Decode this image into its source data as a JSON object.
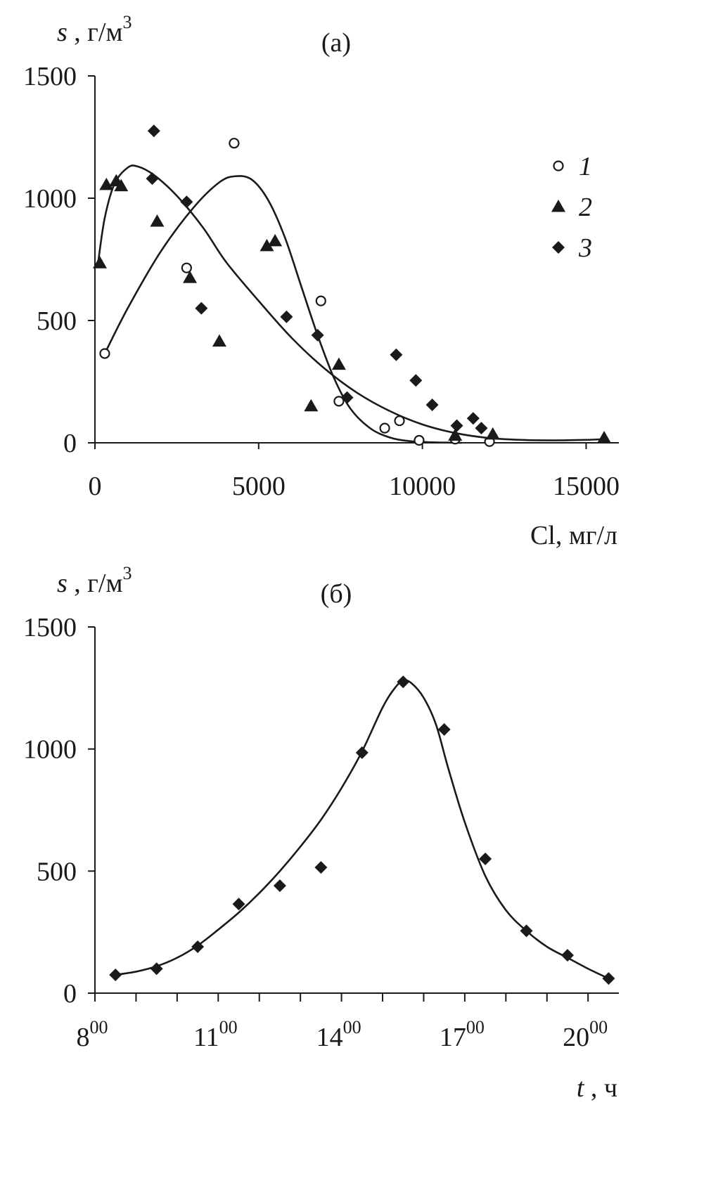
{
  "chart_data": [
    {
      "type": "scatter",
      "title": "(а)",
      "ylabel": {
        "var": "s",
        "unit": "г/м",
        "sup": "3"
      },
      "xlabel": {
        "var": "Cl",
        "unit": "мг/л"
      },
      "xlim": [
        0,
        16000
      ],
      "ylim": [
        0,
        1500
      ],
      "xticks": [
        "0",
        "5000",
        "10000",
        "15000"
      ],
      "xtick_values": [
        0,
        5000,
        10000,
        15000
      ],
      "yticks": [
        "0",
        "500",
        "1000",
        "1500"
      ],
      "ytick_values": [
        0,
        500,
        1000,
        1500
      ],
      "legend_position": "top-right",
      "series": [
        {
          "name": "1",
          "marker": "open-circle",
          "points": [
            [
              300,
              365
            ],
            [
              2800,
              715
            ],
            [
              4250,
              1225
            ],
            [
              6900,
              580
            ],
            [
              7450,
              170
            ],
            [
              8850,
              60
            ],
            [
              9300,
              90
            ],
            [
              9900,
              10
            ],
            [
              11000,
              15
            ],
            [
              12050,
              5
            ]
          ],
          "curve": [
            [
              300,
              365
            ],
            [
              1000,
              550
            ],
            [
              2000,
              780
            ],
            [
              3000,
              960
            ],
            [
              3800,
              1065
            ],
            [
              4300,
              1090
            ],
            [
              4800,
              1075
            ],
            [
              5300,
              990
            ],
            [
              5800,
              840
            ],
            [
              6300,
              640
            ],
            [
              6800,
              440
            ],
            [
              7300,
              265
            ],
            [
              7800,
              140
            ],
            [
              8400,
              60
            ],
            [
              9000,
              22
            ],
            [
              9600,
              7
            ],
            [
              10300,
              2
            ],
            [
              11200,
              0
            ]
          ]
        },
        {
          "name": "2",
          "marker": "filled-triangle",
          "points": [
            [
              150,
              735
            ],
            [
              350,
              1055
            ],
            [
              650,
              1070
            ],
            [
              800,
              1050
            ],
            [
              1900,
              905
            ],
            [
              2900,
              675
            ],
            [
              3800,
              415
            ],
            [
              5250,
              805
            ],
            [
              5500,
              825
            ],
            [
              6600,
              150
            ],
            [
              7450,
              320
            ],
            [
              11000,
              30
            ],
            [
              12150,
              35
            ],
            [
              15550,
              20
            ]
          ],
          "curve": [
            [
              100,
              740
            ],
            [
              300,
              920
            ],
            [
              600,
              1060
            ],
            [
              1000,
              1125
            ],
            [
              1300,
              1130
            ],
            [
              1800,
              1095
            ],
            [
              2500,
              1010
            ],
            [
              3300,
              880
            ],
            [
              4000,
              740
            ],
            [
              5000,
              580
            ],
            [
              6000,
              430
            ],
            [
              7000,
              305
            ],
            [
              8000,
              205
            ],
            [
              9000,
              130
            ],
            [
              10000,
              75
            ],
            [
              11000,
              40
            ],
            [
              12000,
              20
            ],
            [
              13000,
              12
            ],
            [
              14000,
              10
            ],
            [
              15000,
              12
            ],
            [
              15550,
              15
            ]
          ]
        },
        {
          "name": "3",
          "marker": "filled-diamond",
          "points": [
            [
              1800,
              1275
            ],
            [
              1750,
              1080
            ],
            [
              2800,
              985
            ],
            [
              3250,
              550
            ],
            [
              5850,
              515
            ],
            [
              6800,
              440
            ],
            [
              7700,
              185
            ],
            [
              9200,
              360
            ],
            [
              9800,
              255
            ],
            [
              10300,
              155
            ],
            [
              11050,
              70
            ],
            [
              11550,
              100
            ],
            [
              11800,
              60
            ]
          ]
        }
      ]
    },
    {
      "type": "line",
      "title": "(б)",
      "ylabel": {
        "var": "s",
        "unit": "г/м",
        "sup": "3"
      },
      "xlabel": {
        "var": "t",
        "unit": "ч"
      },
      "xlim": [
        8.0,
        20.75
      ],
      "ylim": [
        0,
        1500
      ],
      "minor_xticks": [
        8,
        9,
        10,
        11,
        12,
        13,
        14,
        15,
        16,
        17,
        18,
        19,
        20
      ],
      "xticks": [
        {
          "value": 8,
          "hour": "8",
          "sup": "00"
        },
        {
          "value": 11,
          "hour": "11",
          "sup": "00"
        },
        {
          "value": 14,
          "hour": "14",
          "sup": "00"
        },
        {
          "value": 17,
          "hour": "17",
          "sup": "00"
        },
        {
          "value": 20,
          "hour": "20",
          "sup": "00"
        }
      ],
      "yticks": [
        "0",
        "500",
        "1000",
        "1500"
      ],
      "ytick_values": [
        0,
        500,
        1000,
        1500
      ],
      "series": [
        {
          "name": "",
          "marker": "filled-diamond",
          "points": [
            [
              8.5,
              75
            ],
            [
              9.5,
              100
            ],
            [
              10.5,
              190
            ],
            [
              11.5,
              365
            ],
            [
              12.5,
              440
            ],
            [
              13.5,
              515
            ],
            [
              14.5,
              985
            ],
            [
              15.5,
              1275
            ],
            [
              16.5,
              1080
            ],
            [
              17.5,
              550
            ],
            [
              18.5,
              255
            ],
            [
              19.5,
              155
            ],
            [
              20.5,
              60
            ]
          ],
          "curve": [
            [
              8.5,
              75
            ],
            [
              9.0,
              88
            ],
            [
              9.5,
              110
            ],
            [
              10.0,
              145
            ],
            [
              10.5,
              195
            ],
            [
              11.0,
              260
            ],
            [
              11.5,
              330
            ],
            [
              12.0,
              410
            ],
            [
              12.5,
              500
            ],
            [
              13.0,
              600
            ],
            [
              13.5,
              710
            ],
            [
              14.0,
              840
            ],
            [
              14.5,
              990
            ],
            [
              15.0,
              1170
            ],
            [
              15.3,
              1250
            ],
            [
              15.5,
              1280
            ],
            [
              15.7,
              1270
            ],
            [
              16.0,
              1210
            ],
            [
              16.3,
              1100
            ],
            [
              16.6,
              920
            ],
            [
              17.0,
              700
            ],
            [
              17.5,
              480
            ],
            [
              18.0,
              340
            ],
            [
              18.5,
              255
            ],
            [
              19.0,
              190
            ],
            [
              19.5,
              145
            ],
            [
              20.0,
              100
            ],
            [
              20.5,
              60
            ]
          ]
        }
      ]
    }
  ]
}
